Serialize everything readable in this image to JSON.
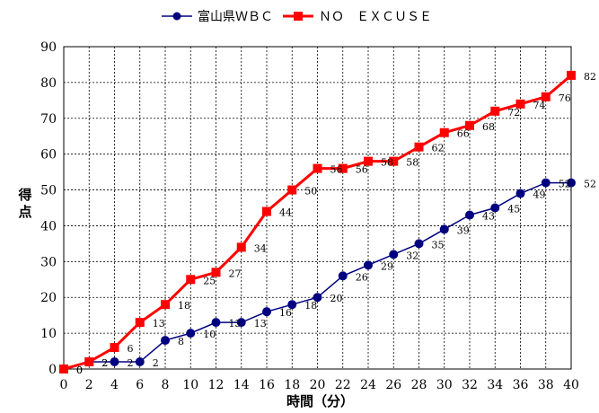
{
  "chart_data": {
    "type": "line",
    "x": [
      0,
      2,
      4,
      6,
      8,
      10,
      12,
      14,
      16,
      18,
      20,
      22,
      24,
      26,
      28,
      30,
      32,
      34,
      36,
      38,
      40
    ],
    "xlabel": "時間（分）",
    "ylabel": "得点",
    "xlim": [
      0,
      40
    ],
    "ylim": [
      0,
      90
    ],
    "x_ticks": [
      0,
      2,
      4,
      6,
      8,
      10,
      12,
      14,
      16,
      18,
      20,
      22,
      24,
      26,
      28,
      30,
      32,
      34,
      36,
      38,
      40
    ],
    "y_ticks": [
      0,
      10,
      20,
      30,
      40,
      50,
      60,
      70,
      80,
      90
    ],
    "grid": true,
    "legend_position": "top",
    "series": [
      {
        "name": "富山県ＷＢＣ",
        "color": "#000080",
        "marker": "circle",
        "values": [
          0,
          2,
          2,
          2,
          8,
          10,
          13,
          13,
          16,
          18,
          20,
          26,
          29,
          32,
          35,
          39,
          43,
          45,
          49,
          52,
          52
        ]
      },
      {
        "name": "ＮＯ　ＥＸＣＵＳＥ",
        "color": "#ff0000",
        "marker": "square",
        "values": [
          0,
          2,
          6,
          13,
          18,
          25,
          27,
          34,
          44,
          50,
          56,
          56,
          58,
          58,
          62,
          66,
          68,
          72,
          74,
          76,
          82
        ]
      }
    ]
  }
}
